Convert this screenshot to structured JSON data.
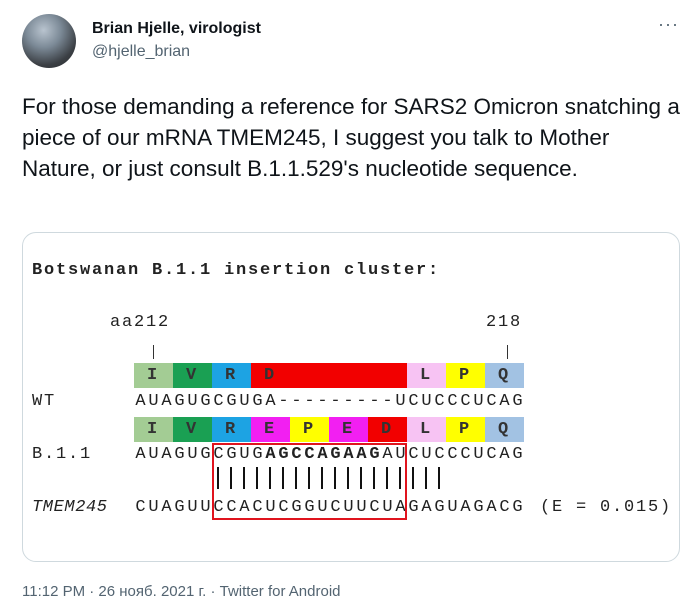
{
  "author": {
    "name": "Brian Hjelle, virologist",
    "handle": "@hjelle_brian"
  },
  "more_icon": "more-horizontal-icon",
  "tweet_text": "For those demanding a reference for SARS2 Omicron snatching a piece of our mRNA TMEM245, I suggest you talk to Mother Nature, or just consult B.1.1.529's nucleotide sequence.",
  "figure": {
    "title": "Botswanan B.1.1 insertion cluster:",
    "pos_start": "aa212",
    "pos_end": "218",
    "wt_aa": [
      {
        "aa": "I",
        "codons": 1,
        "color": "#a3cc94"
      },
      {
        "aa": "V",
        "codons": 1,
        "color": "#1aa053"
      },
      {
        "aa": "R",
        "codons": 1,
        "color": "#1da3e3"
      },
      {
        "aa": "D",
        "codons": 4,
        "color": "#f20000"
      },
      {
        "aa": "L",
        "codons": 1,
        "color": "#f7c3f3"
      },
      {
        "aa": "P",
        "codons": 1,
        "color": "#ffff00"
      },
      {
        "aa": "Q",
        "codons": 1,
        "color": "#a2c2e3"
      }
    ],
    "wt_label": "WT",
    "wt_seq": [
      {
        "text": "AUAGUGCGUGA---------UCUCCCUCAG",
        "bold": false
      }
    ],
    "b11_aa": [
      {
        "aa": "I",
        "codons": 1,
        "color": "#a3cc94"
      },
      {
        "aa": "V",
        "codons": 1,
        "color": "#1aa053"
      },
      {
        "aa": "R",
        "codons": 1,
        "color": "#1da3e3"
      },
      {
        "aa": "E",
        "codons": 1,
        "color": "#f21ff2"
      },
      {
        "aa": "P",
        "codons": 1,
        "color": "#ffff00"
      },
      {
        "aa": "E",
        "codons": 1,
        "color": "#f21ff2"
      },
      {
        "aa": "D",
        "codons": 1,
        "color": "#f20000"
      },
      {
        "aa": "L",
        "codons": 1,
        "color": "#f7c3f3"
      },
      {
        "aa": "P",
        "codons": 1,
        "color": "#ffff00"
      },
      {
        "aa": "Q",
        "codons": 1,
        "color": "#a2c2e3"
      }
    ],
    "b11_label": "B.1.1",
    "b11_seq": [
      {
        "text": "AUAGUGCGUG",
        "bold": false
      },
      {
        "text": "AGCCAGAAG",
        "bold": true
      },
      {
        "text": "AUCUCCCUCAG",
        "bold": false
      }
    ],
    "match_bars": "      ||||||||||||||||||",
    "tmem_label": "TMEM245",
    "tmem_seq": [
      {
        "text": "CUAGUUCCACUCGGUCUUCUAGAGUAGACG",
        "bold": false
      }
    ],
    "evalue": "(E = 0.015)",
    "highlight_color": "#e0141e"
  },
  "footer": "11:12 PM · 26 нояб. 2021 г. · Twitter for Android"
}
